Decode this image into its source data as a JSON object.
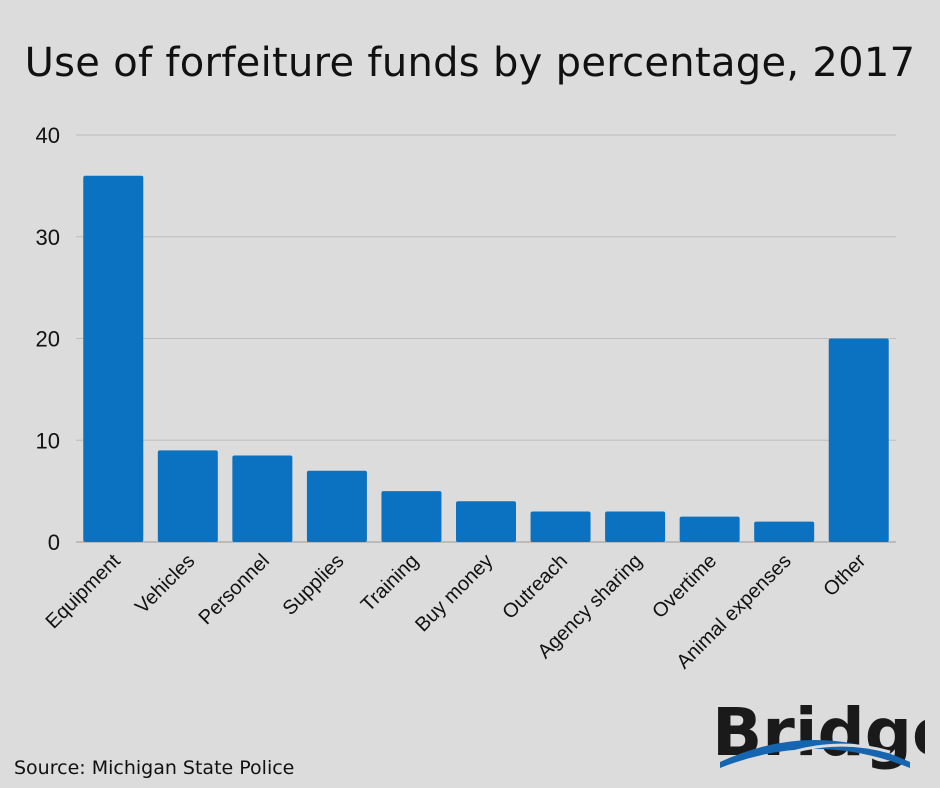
{
  "chart_data": {
    "type": "bar",
    "title": "Use of forfeiture funds by percentage, 2017",
    "categories": [
      "Equipment",
      "Vehicles",
      "Personnel",
      "Supplies",
      "Training",
      "Buy money",
      "Outreach",
      "Agency sharing",
      "Overtime",
      "Animal expenses",
      "Other"
    ],
    "values": [
      36,
      9,
      8.5,
      7,
      5,
      4,
      3,
      3,
      2.5,
      2,
      20
    ],
    "ylim": [
      0,
      40
    ],
    "yticks": [
      0,
      10,
      20,
      30,
      40
    ],
    "xlabel": "",
    "ylabel": "",
    "grid": true,
    "bar_color": "#0a72c0"
  },
  "footer": {
    "source": "Source: Michigan State Police",
    "logo": "Bridge"
  },
  "colors": {
    "background": "#dcdcdc",
    "bar": "#0a72c0",
    "gridline": "#bdbdbd",
    "logo_swoosh": "#1565b0"
  }
}
